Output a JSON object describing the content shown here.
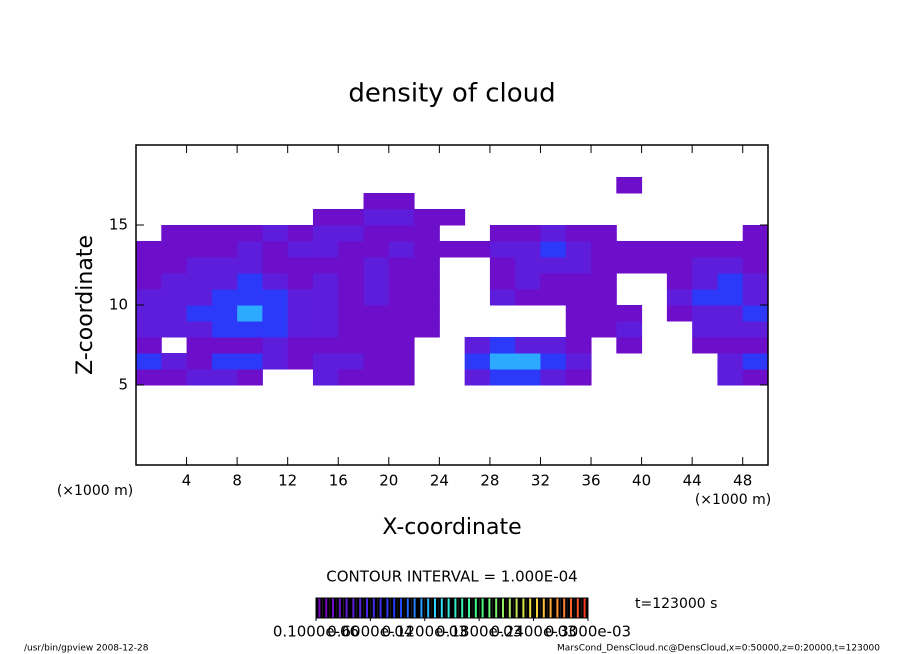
{
  "chart_data": {
    "type": "heatmap",
    "title": "density of cloud",
    "xlabel": "X-coordinate",
    "ylabel": "Z-coordinate",
    "x_unit": "(×1000 m)",
    "y_unit": "(×1000 m)",
    "xlim": [
      0,
      50
    ],
    "ylim": [
      0,
      20
    ],
    "xticks": [
      4,
      8,
      12,
      16,
      20,
      24,
      28,
      32,
      36,
      40,
      44,
      48
    ],
    "yticks": [
      5,
      10,
      15
    ],
    "x": [
      0,
      2,
      4,
      6,
      8,
      10,
      12,
      14,
      16,
      18,
      20,
      22,
      24,
      26,
      28,
      30,
      32,
      34,
      36,
      38,
      40,
      42,
      44,
      46,
      48,
      50
    ],
    "y": [
      5,
      6,
      7,
      8,
      9,
      10,
      11,
      12,
      13,
      14,
      15,
      16,
      17,
      18
    ],
    "z": [
      [
        2e-05,
        2e-05,
        4e-05,
        4e-05,
        2e-05,
        null,
        null,
        4e-05,
        2e-05,
        2e-05,
        2e-05,
        null,
        null,
        4e-05,
        8e-05,
        8e-05,
        4e-05,
        2e-05,
        null,
        null,
        null,
        null,
        null,
        4e-05,
        2e-05
      ],
      [
        8e-05,
        4e-05,
        2e-05,
        8e-05,
        8e-05,
        4e-05,
        2e-05,
        4e-05,
        4e-05,
        2e-05,
        2e-05,
        null,
        null,
        8e-05,
        0.00012,
        0.00012,
        8e-05,
        4e-05,
        null,
        null,
        null,
        null,
        null,
        4e-05,
        8e-05
      ],
      [
        2e-05,
        null,
        2e-05,
        2e-05,
        2e-05,
        4e-05,
        2e-05,
        2e-05,
        2e-05,
        2e-05,
        2e-05,
        null,
        null,
        4e-05,
        8e-05,
        4e-05,
        4e-05,
        2e-05,
        null,
        2e-05,
        null,
        null,
        2e-05,
        2e-05,
        2e-05
      ],
      [
        4e-05,
        4e-05,
        4e-05,
        8e-05,
        8e-05,
        8e-05,
        4e-05,
        4e-05,
        2e-05,
        2e-05,
        2e-05,
        2e-05,
        null,
        null,
        null,
        null,
        null,
        2e-05,
        2e-05,
        4e-05,
        null,
        null,
        4e-05,
        4e-05,
        4e-05
      ],
      [
        4e-05,
        4e-05,
        8e-05,
        8e-05,
        0.00012,
        8e-05,
        4e-05,
        4e-05,
        2e-05,
        2e-05,
        2e-05,
        2e-05,
        null,
        null,
        null,
        null,
        null,
        2e-05,
        2e-05,
        2e-05,
        null,
        2e-05,
        4e-05,
        4e-05,
        8e-05
      ],
      [
        4e-05,
        4e-05,
        4e-05,
        8e-05,
        8e-05,
        8e-05,
        4e-05,
        4e-05,
        2e-05,
        4e-05,
        2e-05,
        2e-05,
        null,
        null,
        4e-05,
        2e-05,
        2e-05,
        2e-05,
        2e-05,
        null,
        null,
        4e-05,
        8e-05,
        8e-05,
        4e-05
      ],
      [
        2e-05,
        4e-05,
        4e-05,
        4e-05,
        8e-05,
        4e-05,
        2e-05,
        4e-05,
        2e-05,
        4e-05,
        2e-05,
        2e-05,
        null,
        null,
        2e-05,
        4e-05,
        2e-05,
        2e-05,
        2e-05,
        null,
        null,
        2e-05,
        4e-05,
        8e-05,
        4e-05
      ],
      [
        2e-05,
        2e-05,
        4e-05,
        4e-05,
        4e-05,
        2e-05,
        2e-05,
        2e-05,
        2e-05,
        4e-05,
        2e-05,
        2e-05,
        null,
        null,
        2e-05,
        4e-05,
        4e-05,
        4e-05,
        2e-05,
        2e-05,
        2e-05,
        2e-05,
        4e-05,
        4e-05,
        2e-05
      ],
      [
        2e-05,
        2e-05,
        2e-05,
        2e-05,
        4e-05,
        2e-05,
        4e-05,
        4e-05,
        2e-05,
        2e-05,
        4e-05,
        2e-05,
        2e-05,
        2e-05,
        4e-05,
        4e-05,
        8e-05,
        4e-05,
        2e-05,
        2e-05,
        2e-05,
        2e-05,
        2e-05,
        2e-05,
        2e-05
      ],
      [
        null,
        2e-05,
        2e-05,
        2e-05,
        2e-05,
        4e-05,
        2e-05,
        4e-05,
        4e-05,
        2e-05,
        2e-05,
        2e-05,
        null,
        null,
        2e-05,
        2e-05,
        4e-05,
        2e-05,
        2e-05,
        null,
        null,
        null,
        null,
        null,
        2e-05
      ],
      [
        null,
        null,
        null,
        null,
        null,
        null,
        null,
        2e-05,
        2e-05,
        4e-05,
        4e-05,
        2e-05,
        2e-05,
        null,
        null,
        null,
        null,
        null,
        null,
        null,
        null,
        null,
        null,
        null,
        null
      ],
      [
        null,
        null,
        null,
        null,
        null,
        null,
        null,
        null,
        null,
        2e-05,
        2e-05,
        null,
        null,
        null,
        null,
        null,
        null,
        null,
        null,
        null,
        null,
        null,
        null,
        null,
        null
      ],
      [
        null,
        null,
        null,
        null,
        null,
        null,
        null,
        null,
        null,
        null,
        null,
        null,
        null,
        null,
        null,
        null,
        null,
        null,
        null,
        2e-05,
        null,
        null,
        null,
        null,
        null
      ]
    ],
    "colorbar": [
      {
        "value": 1e-07,
        "label": "0.1000e-06"
      },
      {
        "value": 6e-05,
        "label": "0.6000e-04"
      },
      {
        "value": 0.00012,
        "label": "0.1200e-03"
      },
      {
        "value": 0.00018,
        "label": "0.1800e-03"
      },
      {
        "value": 0.00024,
        "label": "0.2400e-03"
      },
      {
        "value": 0.0003,
        "label": "0.3000e-03"
      }
    ],
    "contour_interval": "CONTOUR INTERVAL = 1.000E-04",
    "time_label": "t=123000 s",
    "footer_left": "/usr/bin/gpview   2008-12-28",
    "footer_right": "MarsCond_DensCloud.nc@DensCloud,x=0:50000,z=0:20000,t=123000"
  }
}
